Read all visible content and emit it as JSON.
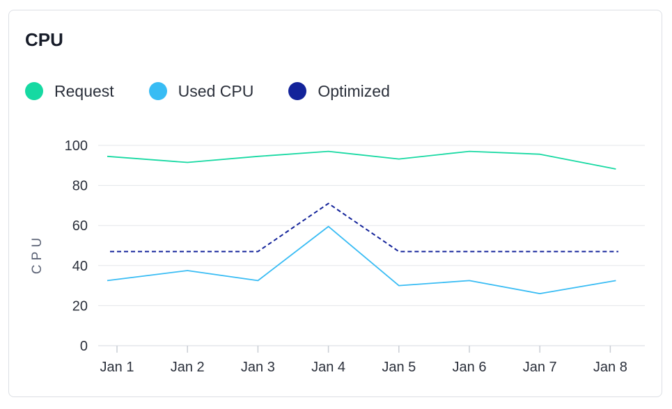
{
  "card": {
    "title": "CPU"
  },
  "colors": {
    "request": "#16d9a2",
    "used": "#38bcf4",
    "optimized": "#13239a",
    "grid": "#e3e6ea",
    "text": "#2a2f3a"
  },
  "chart_data": {
    "type": "line",
    "title": "CPU",
    "ylabel": "CPU",
    "xlabel": "",
    "categories": [
      "Jan 1",
      "Jan 2",
      "Jan 3",
      "Jan 4",
      "Jan 5",
      "Jan 6",
      "Jan 7",
      "Jan 8"
    ],
    "ylim": [
      0,
      100
    ],
    "yticks": [
      0,
      20,
      40,
      60,
      80,
      100
    ],
    "grid": true,
    "legend_position": "top-left",
    "series": [
      {
        "name": "Request",
        "color": "#16d9a2",
        "style": "solid",
        "values": [
          94.5,
          91.5,
          94.5,
          97,
          93.2,
          97,
          95.6,
          88.2
        ]
      },
      {
        "name": "Used CPU",
        "color": "#38bcf4",
        "style": "solid",
        "values": [
          32.5,
          37.5,
          32.5,
          59.5,
          30,
          32.5,
          26,
          32.5
        ]
      },
      {
        "name": "Optimized",
        "color": "#13239a",
        "style": "dashed",
        "values": [
          47,
          47,
          47,
          71,
          47,
          47,
          47,
          47
        ]
      }
    ]
  }
}
